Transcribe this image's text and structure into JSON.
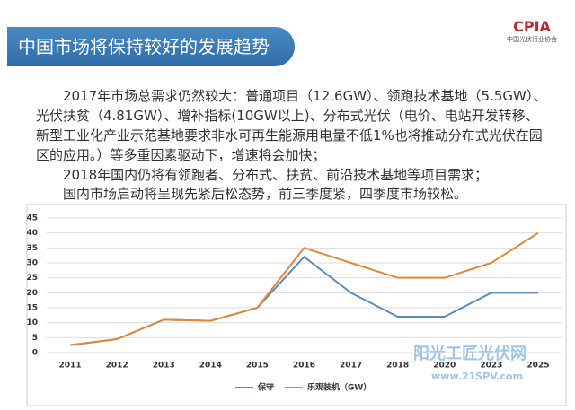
{
  "header": {
    "title": "中国市场将保持较好的发展趋势",
    "logo": "CPIA",
    "logo_caption": "中国光伏行业协会"
  },
  "paragraphs": [
    "2017年市场总需求仍然较大：普通项目（12.6GW）、领跑技术基地（5.5GW）、光伏扶贫（4.81GW）、增补指标(10GW以上)、分布式光伏（电价、电站开发转移、新型工业化产业示范基地要求非水可再生能源用电量不低1%也将推动分布式光伏在园区的应用。）等多重因素驱动下，增速将会加快；",
    "2018年国内仍将有领跑者、分布式、扶贫、前沿技术基地等项目需求；",
    "国内市场启动将呈现先紧后松态势，前三季度紧，四季度市场较松。"
  ],
  "watermark": {
    "name": "阳光工匠光伏网",
    "url": "www.21SPV.com"
  },
  "chart_data": {
    "type": "line",
    "categories": [
      "2011",
      "2012",
      "2013",
      "2014",
      "2015",
      "2016",
      "2017",
      "2018",
      "2020",
      "2023",
      "2025"
    ],
    "series": [
      {
        "name": "保守",
        "color": "#5b8ab8",
        "values": [
          2.5,
          4.5,
          11,
          10.6,
          15,
          32,
          20,
          12,
          12,
          20,
          20
        ]
      },
      {
        "name": "乐观装机（GW）",
        "color": "#d98a3a",
        "values": [
          2.5,
          4.5,
          11,
          10.6,
          15,
          35,
          30,
          25,
          25,
          30,
          40
        ]
      }
    ],
    "ylim": [
      0,
      45
    ],
    "yticks": [
      0,
      5,
      10,
      15,
      20,
      25,
      30,
      35,
      40,
      45
    ],
    "grid": true,
    "legend": "bottom"
  }
}
